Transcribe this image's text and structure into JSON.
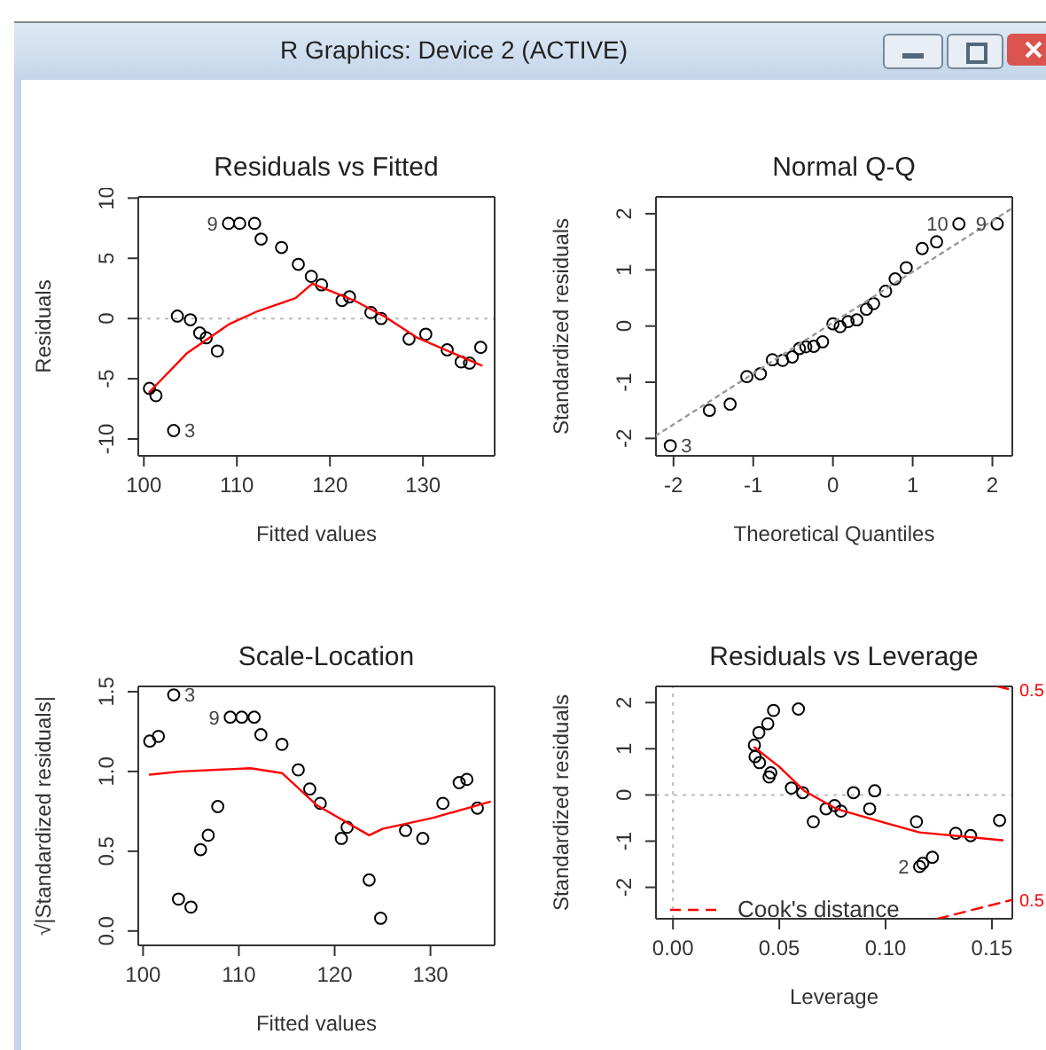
{
  "chart_data": [
    {
      "type": "scatter",
      "title": "Residuals vs Fitted",
      "xlabel": "Fitted values",
      "ylabel": "Residuals",
      "xlim": [
        99.4,
        137.7
      ],
      "ylim": [
        -11.4,
        10.1
      ],
      "xticks": [
        100,
        110,
        120,
        130
      ],
      "yticks": [
        -10,
        -5,
        0,
        5,
        10
      ],
      "grid": false,
      "annotations": [
        "R Graphics: Device 2 (ACTIVE)",
        {
          "text": "9",
          "x": 109.1,
          "y": 7.9
        },
        {
          "text": "3",
          "x": 103.2,
          "y": -9.3
        }
      ],
      "ref_lines": [
        {
          "axis": "y",
          "value": 0,
          "color": "#bbbbbb",
          "line_style": "dotted"
        }
      ],
      "series": [
        {
          "type": "scatter",
          "marker": "circle",
          "color": "#000000",
          "x": [
            100.6,
            101.3,
            103.2,
            103.6,
            105,
            106,
            106.7,
            107.9,
            109.1,
            110.3,
            111.9,
            112.6,
            114.8,
            116.6,
            118,
            119.1,
            121.3,
            122.1,
            124.4,
            125.5,
            128.5,
            130.3,
            132.6,
            134.1,
            135,
            136.2
          ],
          "values": [
            -5.8,
            -6.4,
            -9.3,
            0.2,
            -0.1,
            -1.2,
            -1.6,
            -2.7,
            7.9,
            7.9,
            7.9,
            6.6,
            5.9,
            4.5,
            3.5,
            2.8,
            1.5,
            1.8,
            0.5,
            0,
            -1.7,
            -1.3,
            -2.6,
            -3.6,
            -3.7,
            -2.4
          ]
        },
        {
          "type": "line",
          "marker": "none",
          "color": "#ff0000",
          "line_style": "solid",
          "x": [
            100.6,
            104.6,
            109.1,
            112.2,
            116.3,
            118.1,
            122.6,
            126,
            129.4,
            136.3
          ],
          "values": [
            -6.1,
            -2.9,
            -0.5,
            0.6,
            1.7,
            2.9,
            1.5,
            0.1,
            -1.6,
            -3.9
          ]
        }
      ]
    },
    {
      "type": "scatter",
      "title": "Normal Q-Q",
      "xlabel": "Theoretical Quantiles",
      "ylabel": "Standardized residuals",
      "xlim": [
        -2.22,
        2.25
      ],
      "ylim": [
        -2.31,
        2.3
      ],
      "xticks": [
        -2,
        -1,
        0,
        1,
        2
      ],
      "yticks": [
        -2,
        -1,
        0,
        1,
        2
      ],
      "grid": false,
      "annotations": [
        {
          "text": "10",
          "x": 1.58,
          "y": 1.82
        },
        {
          "text": "9",
          "x": 2.06,
          "y": 1.82
        },
        {
          "text": "3",
          "x": -2.04,
          "y": -2.13
        }
      ],
      "series": [
        {
          "type": "scatter",
          "marker": "circle",
          "color": "#000000",
          "x": [
            -2.04,
            -1.55,
            -1.29,
            -1.08,
            -0.91,
            -0.76,
            -0.63,
            -0.51,
            -0.42,
            -0.34,
            -0.24,
            -0.13,
            0,
            0.09,
            0.19,
            0.3,
            0.42,
            0.51,
            0.66,
            0.78,
            0.92,
            1.12,
            1.3,
            1.58,
            2.06
          ],
          "values": [
            -2.13,
            -1.5,
            -1.39,
            -0.9,
            -0.85,
            -0.6,
            -0.61,
            -0.55,
            -0.4,
            -0.37,
            -0.36,
            -0.28,
            0.04,
            -0.01,
            0.08,
            0.11,
            0.3,
            0.4,
            0.62,
            0.84,
            1.04,
            1.38,
            1.5,
            1.82,
            1.82
          ]
        },
        {
          "type": "line",
          "marker": "none",
          "color": "#999999",
          "line_style": "dotted",
          "x": [
            -2.22,
            2.25
          ],
          "values": [
            -1.95,
            2.1
          ]
        }
      ]
    },
    {
      "type": "scatter",
      "title": "Scale-Location",
      "xlabel": "Fitted values",
      "ylabel": "√|Standardized residuals|",
      "xlim": [
        99.5,
        136.7
      ],
      "ylim": [
        -0.09,
        1.533
      ],
      "xticks": [
        100,
        110,
        120,
        130
      ],
      "yticks": [
        {
          "value": 0,
          "label": "0.0"
        },
        {
          "value": 0.5,
          "label": "0.5"
        },
        {
          "value": 1,
          "label": "1.0"
        },
        {
          "value": 1.5,
          "label": "1.5"
        }
      ],
      "grid": false,
      "annotations": [
        {
          "text": "3",
          "x": 103.2,
          "y": 1.48
        },
        {
          "text": "9",
          "x": 109.1,
          "y": 1.34
        }
      ],
      "series": [
        {
          "type": "scatter",
          "marker": "circle",
          "color": "#000000",
          "x": [
            100.7,
            101.6,
            103.2,
            103.7,
            105,
            106,
            106.8,
            107.8,
            109.1,
            110.3,
            111.6,
            112.3,
            114.5,
            116.2,
            117.4,
            118.5,
            120.7,
            121.3,
            123.6,
            124.8,
            127.4,
            129.2,
            131.3,
            133,
            133.8,
            134.9
          ],
          "values": [
            1.19,
            1.22,
            1.48,
            0.2,
            0.15,
            0.51,
            0.6,
            0.78,
            1.34,
            1.34,
            1.34,
            1.23,
            1.17,
            1.01,
            0.89,
            0.8,
            0.58,
            0.65,
            0.32,
            0.08,
            0.63,
            0.58,
            0.8,
            0.93,
            0.95,
            0.77
          ]
        },
        {
          "type": "line",
          "marker": "none",
          "color": "#ff0000",
          "line_style": "solid",
          "x": [
            100.7,
            104,
            111.2,
            114.5,
            118.1,
            123.6,
            125,
            130.3,
            136.2
          ],
          "values": [
            0.98,
            1.0,
            1.02,
            0.99,
            0.79,
            0.6,
            0.64,
            0.71,
            0.81
          ]
        }
      ]
    },
    {
      "type": "scatter",
      "title": "Residuals vs Leverage",
      "xlabel": "Leverage",
      "ylabel": "Standardized residuals",
      "xlim": [
        -0.008,
        0.1596
      ],
      "ylim": [
        -2.68,
        2.35
      ],
      "xticks": [
        {
          "value": 0,
          "label": "0.00"
        },
        {
          "value": 0.05,
          "label": "0.05"
        },
        {
          "value": 0.1,
          "label": "0.10"
        },
        {
          "value": 0.15,
          "label": "0.15"
        }
      ],
      "yticks": [
        -2,
        -1,
        0,
        1,
        2
      ],
      "grid": false,
      "legend": "bottom left",
      "annotations": [
        {
          "text": "2",
          "x": 0.116,
          "y": -1.55
        },
        {
          "text": "0.5",
          "x": 0.1596,
          "y": 2.27
        },
        {
          "text": "0.5",
          "x": 0.1596,
          "y": -2.27
        }
      ],
      "ref_lines": [
        {
          "axis": "y",
          "value": 0,
          "color": "#bbbbbb",
          "line_style": "dotted"
        },
        {
          "axis": "x",
          "value": 0,
          "color": "#bbbbbb",
          "line_style": "dotted"
        }
      ],
      "series": [
        {
          "type": "scatter",
          "marker": "circle",
          "color": "#000000",
          "x": [
            0.0383,
            0.0386,
            0.0404,
            0.0407,
            0.0446,
            0.0452,
            0.046,
            0.0473,
            0.0557,
            0.059,
            0.061,
            0.066,
            0.072,
            0.076,
            0.079,
            0.0849,
            0.0925,
            0.0949,
            0.1145,
            0.116,
            0.1175,
            0.122,
            0.133,
            0.14,
            0.1536
          ],
          "values": [
            1.08,
            0.83,
            1.35,
            0.7,
            1.54,
            0.39,
            0.48,
            1.83,
            0.15,
            1.86,
            0.05,
            -0.58,
            -0.3,
            -0.23,
            -0.35,
            0.05,
            -0.3,
            0.09,
            -0.58,
            -1.55,
            -1.48,
            -1.35,
            -0.83,
            -0.88,
            -0.55
          ]
        },
        {
          "type": "line",
          "marker": "none",
          "color": "#ff0000",
          "line_style": "solid",
          "x": [
            0.0383,
            0.05,
            0.0617,
            0.0768,
            0.1009,
            0.116,
            0.155
          ],
          "values": [
            1.03,
            0.61,
            0.09,
            -0.3,
            -0.62,
            -0.81,
            -0.98
          ]
        },
        {
          "type": "line",
          "marker": "none",
          "name": "Cook's distance",
          "color": "#ff0000",
          "line_style": "dashed",
          "x": [
            0.1244,
            0.1596
          ],
          "values": [
            -2.68,
            -2.27
          ]
        },
        {
          "type": "line",
          "marker": "none",
          "color": "#ff0000",
          "line_style": "dashed",
          "x": [
            0.1527,
            0.1596
          ],
          "values": [
            2.35,
            2.27
          ]
        }
      ]
    }
  ]
}
